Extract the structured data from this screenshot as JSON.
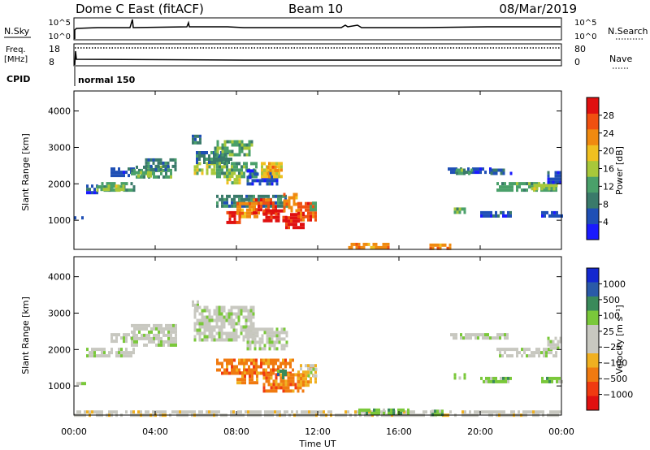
{
  "header": {
    "station": "Dome C East (fitACF)",
    "beam": "Beam 10",
    "date": "08/Mar/2019"
  },
  "strip": {
    "nsky_label": "N.Sky",
    "nsearch_label": "N.Search",
    "nsky_ticks": [
      "10^5",
      "10^0"
    ],
    "nsearch_ticks": [
      "10^5",
      "10^0"
    ],
    "freq_label_1": "Freq.",
    "freq_label_2": "[MHz]",
    "freq_ticks": [
      "18",
      "8"
    ],
    "nave_label": "Nave",
    "nave_ticks": [
      "80",
      "0"
    ],
    "cpid_label": "CPID",
    "cpid_value": "normal 150"
  },
  "colors": {
    "power": [
      "#1a1aff",
      "#1f4fb5",
      "#3a7a6a",
      "#4aa06a",
      "#a8c83a",
      "#f0c020",
      "#f08a10",
      "#f05010",
      "#e01010"
    ],
    "velocity": [
      "#1428d0",
      "#2a5aa8",
      "#3a8a5a",
      "#7ac83a",
      "#c8c8c0",
      "#c8c8c0",
      "#f0b020",
      "#f07a10",
      "#f03a10",
      "#e01010"
    ]
  },
  "chart_data": [
    {
      "type": "heatmap",
      "name": "power-panel",
      "ylabel": "Slant Range [km]",
      "yticks": [
        1000,
        2000,
        3000,
        4000
      ],
      "ylim": [
        200,
        4550
      ],
      "xlim": [
        0,
        24
      ],
      "colorbar": {
        "label": "Power [dB]",
        "ticks": [
          "4",
          "8",
          "12",
          "16",
          "20",
          "24",
          "28"
        ],
        "range": [
          0,
          32
        ]
      },
      "regions": [
        {
          "t0": 0.0,
          "t1": 0.5,
          "r0": 1030,
          "r1": 1110,
          "level": 1
        },
        {
          "t0": 0.6,
          "t1": 1.2,
          "r0": 1790,
          "r1": 1980,
          "level": 1
        },
        {
          "t0": 1.1,
          "t1": 3.0,
          "r0": 1800,
          "r1": 2050,
          "level": 3
        },
        {
          "t0": 1.3,
          "t1": 2.5,
          "r0": 1870,
          "r1": 1980,
          "level": 4
        },
        {
          "t0": 1.8,
          "t1": 3.0,
          "r0": 2200,
          "r1": 2450,
          "level": 1
        },
        {
          "t0": 2.8,
          "t1": 4.8,
          "r0": 2150,
          "r1": 2500,
          "level": 3
        },
        {
          "t0": 3.0,
          "t1": 3.8,
          "r0": 2180,
          "r1": 2350,
          "level": 4
        },
        {
          "t0": 3.5,
          "t1": 5.0,
          "r0": 2400,
          "r1": 2700,
          "level": 2
        },
        {
          "t0": 5.8,
          "t1": 6.2,
          "r0": 3150,
          "r1": 3350,
          "level": 2
        },
        {
          "t0": 5.9,
          "t1": 7.0,
          "r0": 2300,
          "r1": 2600,
          "level": 4
        },
        {
          "t0": 6.0,
          "t1": 7.8,
          "r0": 2600,
          "r1": 2900,
          "level": 2
        },
        {
          "t0": 6.9,
          "t1": 8.8,
          "r0": 2800,
          "r1": 3200,
          "level": 3
        },
        {
          "t0": 7.0,
          "t1": 9.0,
          "r0": 2200,
          "r1": 2600,
          "level": 3
        },
        {
          "t0": 7.5,
          "t1": 8.2,
          "r0": 2000,
          "r1": 2250,
          "level": 4
        },
        {
          "t0": 8.5,
          "t1": 10.0,
          "r0": 2000,
          "r1": 2400,
          "level": 1
        },
        {
          "t0": 9.2,
          "t1": 10.2,
          "r0": 2200,
          "r1": 2600,
          "level": 5
        },
        {
          "t0": 9.5,
          "t1": 10.0,
          "r0": 2300,
          "r1": 2500,
          "level": 6
        },
        {
          "t0": 7.0,
          "t1": 10.5,
          "r0": 1400,
          "r1": 1700,
          "level": 2
        },
        {
          "t0": 7.5,
          "t1": 8.2,
          "r0": 950,
          "r1": 1250,
          "level": 8
        },
        {
          "t0": 8.0,
          "t1": 9.0,
          "r0": 1100,
          "r1": 1500,
          "level": 6
        },
        {
          "t0": 8.8,
          "t1": 10.0,
          "r0": 1200,
          "r1": 1600,
          "level": 7
        },
        {
          "t0": 9.3,
          "t1": 10.5,
          "r0": 1000,
          "r1": 1300,
          "level": 8
        },
        {
          "t0": 10.3,
          "t1": 11.0,
          "r0": 1300,
          "r1": 1750,
          "level": 6
        },
        {
          "t0": 10.4,
          "t1": 11.3,
          "r0": 800,
          "r1": 1200,
          "level": 8
        },
        {
          "t0": 11.0,
          "t1": 11.9,
          "r0": 1000,
          "r1": 1500,
          "level": 7
        },
        {
          "t0": 11.6,
          "t1": 11.9,
          "r0": 1300,
          "r1": 1600,
          "level": 3
        },
        {
          "t0": 13.5,
          "t1": 15.5,
          "r0": 260,
          "r1": 380,
          "level": 6
        },
        {
          "t0": 17.5,
          "t1": 18.5,
          "r0": 260,
          "r1": 360,
          "level": 6
        },
        {
          "t0": 18.4,
          "t1": 20.5,
          "r0": 2280,
          "r1": 2450,
          "level": 1
        },
        {
          "t0": 18.8,
          "t1": 19.6,
          "r0": 2330,
          "r1": 2420,
          "level": 3
        },
        {
          "t0": 20.5,
          "t1": 21.5,
          "r0": 2300,
          "r1": 2420,
          "level": 1
        },
        {
          "t0": 20.8,
          "t1": 23.8,
          "r0": 1800,
          "r1": 2050,
          "level": 3
        },
        {
          "t0": 22.5,
          "t1": 23.8,
          "r0": 1850,
          "r1": 2000,
          "level": 4
        },
        {
          "t0": 18.7,
          "t1": 19.3,
          "r0": 1200,
          "r1": 1350,
          "level": 3
        },
        {
          "t0": 20.0,
          "t1": 21.5,
          "r0": 1100,
          "r1": 1250,
          "level": 1
        },
        {
          "t0": 23.0,
          "t1": 24.0,
          "r0": 1150,
          "r1": 1250,
          "level": 1
        },
        {
          "t0": 23.3,
          "t1": 24.0,
          "r0": 2050,
          "r1": 2350,
          "level": 1
        }
      ]
    },
    {
      "type": "heatmap",
      "name": "velocity-panel",
      "ylabel": "Slant Range [km]",
      "yticks": [
        1000,
        2000,
        3000,
        4000
      ],
      "ylim": [
        200,
        4550
      ],
      "xlim": [
        0,
        24
      ],
      "xticks": [
        "00:00",
        "04:00",
        "08:00",
        "12:00",
        "16:00",
        "20:00",
        "00:00"
      ],
      "xlabel": "Time UT",
      "colorbar": {
        "label": "Velocity [m s⁻¹]",
        "ticks": [
          "1000",
          "500",
          "100",
          "25",
          "−25",
          "−100",
          "−500",
          "−1000"
        ]
      },
      "regions": [
        {
          "t0": 0.0,
          "t1": 0.5,
          "r0": 1030,
          "r1": 1110,
          "level": 4
        },
        {
          "t0": 0.6,
          "t1": 3.0,
          "r0": 1790,
          "r1": 2050,
          "level": 4
        },
        {
          "t0": 1.8,
          "t1": 3.0,
          "r0": 2200,
          "r1": 2450,
          "level": 4
        },
        {
          "t0": 2.8,
          "t1": 5.0,
          "r0": 2150,
          "r1": 2700,
          "level": 4
        },
        {
          "t0": 5.8,
          "t1": 6.2,
          "r0": 3100,
          "r1": 3350,
          "level": 4
        },
        {
          "t0": 5.9,
          "t1": 8.8,
          "r0": 2300,
          "r1": 3200,
          "level": 4
        },
        {
          "t0": 8.5,
          "t1": 10.5,
          "r0": 2000,
          "r1": 2600,
          "level": 4
        },
        {
          "t0": 7.0,
          "t1": 10.8,
          "r0": 1350,
          "r1": 1750,
          "level": 7
        },
        {
          "t0": 8.0,
          "t1": 9.0,
          "r0": 1100,
          "r1": 1400,
          "level": 7
        },
        {
          "t0": 9.3,
          "t1": 11.3,
          "r0": 900,
          "r1": 1350,
          "level": 7
        },
        {
          "t0": 11.0,
          "t1": 11.9,
          "r0": 1000,
          "r1": 1600,
          "level": 6
        },
        {
          "t0": 10.0,
          "t1": 10.4,
          "r0": 1200,
          "r1": 1450,
          "level": 2
        },
        {
          "t0": 11.5,
          "t1": 11.9,
          "r0": 1250,
          "r1": 1500,
          "level": 3
        },
        {
          "t0": 18.4,
          "t1": 21.5,
          "r0": 2280,
          "r1": 2450,
          "level": 4
        },
        {
          "t0": 20.8,
          "t1": 23.8,
          "r0": 1800,
          "r1": 2050,
          "level": 4
        },
        {
          "t0": 23.3,
          "t1": 24.0,
          "r0": 2050,
          "r1": 2350,
          "level": 4
        },
        {
          "t0": 18.7,
          "t1": 19.3,
          "r0": 1200,
          "r1": 1350,
          "level": 3
        },
        {
          "t0": 20.0,
          "t1": 21.5,
          "r0": 1100,
          "r1": 1250,
          "level": 3
        },
        {
          "t0": 23.0,
          "t1": 24.0,
          "r0": 1150,
          "r1": 1250,
          "level": 3
        },
        {
          "t0": 0.0,
          "t1": 24.0,
          "r0": 200,
          "r1": 330,
          "level": 5
        },
        {
          "t0": 14.0,
          "t1": 16.5,
          "r0": 260,
          "r1": 380,
          "level": 3
        },
        {
          "t0": 17.6,
          "t1": 18.2,
          "r0": 250,
          "r1": 350,
          "level": 3
        }
      ]
    }
  ]
}
